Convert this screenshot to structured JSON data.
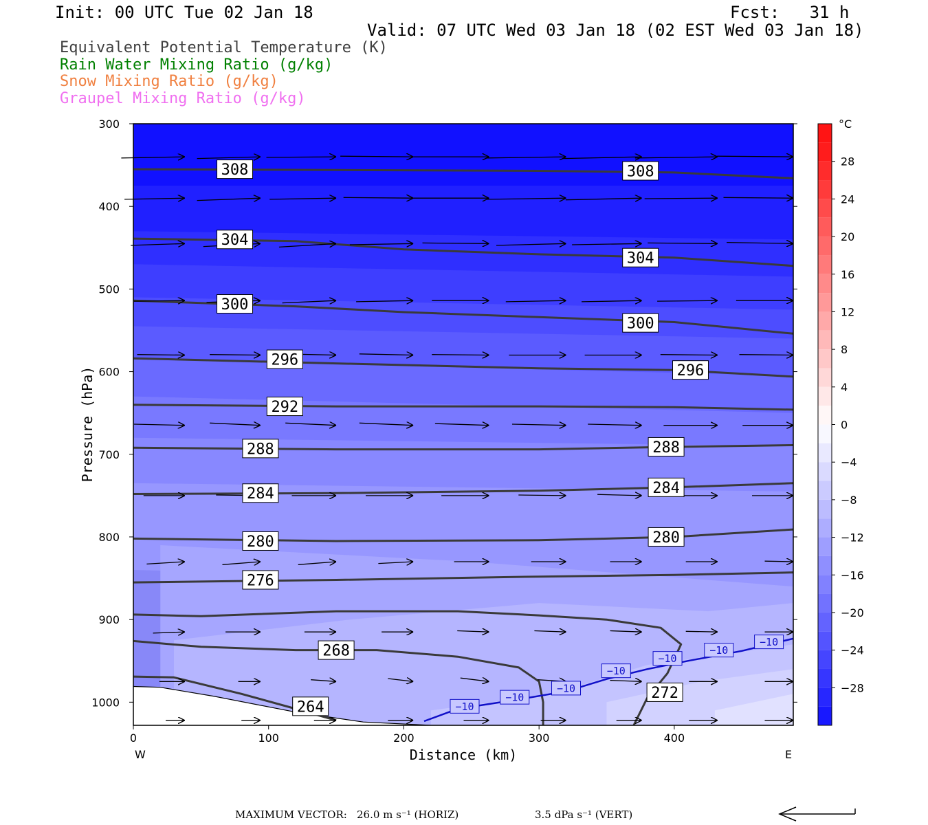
{
  "header": {
    "init": "Init: 00 UTC Tue 02 Jan 18",
    "fcst": "Fcst:   31 h",
    "valid": "Valid: 07 UTC Wed 03 Jan 18 (02 EST Wed 03 Jan 18)"
  },
  "legend": [
    {
      "label": "Equivalent Potential Temperature (K)",
      "color": "#404040"
    },
    {
      "label": "Rain Water Mixing Ratio (g/kg)",
      "color": "#008000"
    },
    {
      "label": "Snow Mixing Ratio (g/kg)",
      "color": "#f08040"
    },
    {
      "label": "Graupel Mixing Ratio (g/kg)",
      "color": "#f070f0"
    }
  ],
  "chart_data": {
    "type": "cross-section",
    "xlabel": "Distance (km)",
    "ylabel": "Pressure (hPa)",
    "xlim": [
      0,
      488
    ],
    "ylim": [
      1028,
      300
    ],
    "x_ticks": [
      "0",
      "100",
      "200",
      "300",
      "400"
    ],
    "x_tick_values": [
      0,
      100,
      200,
      300,
      400
    ],
    "y_ticks": [
      "300",
      "400",
      "500",
      "600",
      "700",
      "800",
      "900",
      "1000"
    ],
    "y_tick_values": [
      300,
      400,
      500,
      600,
      700,
      800,
      900,
      1000
    ],
    "end_labels": {
      "left": "W",
      "right": "E"
    },
    "colorbar": {
      "unit": "°C",
      "labels": [
        "28",
        "24",
        "20",
        "16",
        "12",
        "8",
        "4",
        "0",
        "−4",
        "−8",
        "−12",
        "−16",
        "−20",
        "−24",
        "−28"
      ],
      "values": [
        28,
        24,
        20,
        16,
        12,
        8,
        4,
        0,
        -4,
        -8,
        -12,
        -16,
        -20,
        -24,
        -28
      ],
      "range": [
        -32,
        32
      ]
    },
    "temperature_bands": [
      {
        "value": -32,
        "points": [
          [
            0,
            300
          ],
          [
            488,
            300
          ],
          [
            488,
            420
          ],
          [
            0,
            420
          ]
        ]
      },
      {
        "value": -30,
        "points": [
          [
            0,
            375
          ],
          [
            488,
            375
          ],
          [
            488,
            470
          ],
          [
            0,
            465
          ]
        ]
      },
      {
        "value": -28,
        "points": [
          [
            0,
            430
          ],
          [
            488,
            440
          ],
          [
            488,
            510
          ],
          [
            0,
            500
          ]
        ]
      },
      {
        "value": -26,
        "points": [
          [
            0,
            470
          ],
          [
            488,
            485
          ],
          [
            488,
            550
          ],
          [
            0,
            540
          ]
        ]
      },
      {
        "value": -24,
        "points": [
          [
            0,
            510
          ],
          [
            488,
            525
          ],
          [
            488,
            590
          ],
          [
            0,
            580
          ]
        ]
      },
      {
        "value": -22,
        "points": [
          [
            0,
            545
          ],
          [
            488,
            560
          ],
          [
            488,
            635
          ],
          [
            0,
            620
          ]
        ]
      },
      {
        "value": -20,
        "points": [
          [
            0,
            585
          ],
          [
            488,
            605
          ],
          [
            488,
            680
          ],
          [
            0,
            660
          ]
        ]
      },
      {
        "value": -18,
        "points": [
          [
            0,
            630
          ],
          [
            488,
            650
          ],
          [
            488,
            725
          ],
          [
            0,
            710
          ]
        ]
      },
      {
        "value": -16,
        "points": [
          [
            0,
            680
          ],
          [
            488,
            690
          ],
          [
            488,
            790
          ],
          [
            0,
            770
          ]
        ]
      },
      {
        "value": -14,
        "points": [
          [
            0,
            735
          ],
          [
            488,
            745
          ],
          [
            488,
            860
          ],
          [
            0,
            840
          ]
        ]
      },
      {
        "value": -12,
        "points": [
          [
            20,
            810
          ],
          [
            250,
            830
          ],
          [
            488,
            860
          ],
          [
            488,
            1028
          ],
          [
            20,
            1028
          ]
        ]
      },
      {
        "value": -10,
        "points": [
          [
            30,
            925
          ],
          [
            160,
            900
          ],
          [
            300,
            880
          ],
          [
            425,
            890
          ],
          [
            488,
            880
          ],
          [
            488,
            1028
          ],
          [
            30,
            1028
          ]
        ]
      },
      {
        "value": -8,
        "points": [
          [
            220,
            1010
          ],
          [
            310,
            990
          ],
          [
            380,
            955
          ],
          [
            488,
            930
          ],
          [
            488,
            1028
          ],
          [
            220,
            1028
          ]
        ]
      },
      {
        "value": -6,
        "points": [
          [
            350,
            1000
          ],
          [
            420,
            975
          ],
          [
            488,
            960
          ],
          [
            488,
            1028
          ],
          [
            350,
            1028
          ]
        ]
      },
      {
        "value": -4,
        "points": [
          [
            430,
            1010
          ],
          [
            488,
            990
          ],
          [
            488,
            1028
          ],
          [
            430,
            1028
          ]
        ]
      }
    ],
    "theta_e": [
      {
        "value": 308,
        "label": "308",
        "points": [
          [
            0,
            355
          ],
          [
            150,
            356
          ],
          [
            300,
            357
          ],
          [
            400,
            359
          ],
          [
            488,
            366
          ]
        ],
        "label_at": [
          [
            75,
            355
          ],
          [
            375,
            357
          ]
        ]
      },
      {
        "value": 304,
        "label": "304",
        "points": [
          [
            0,
            439
          ],
          [
            120,
            442
          ],
          [
            200,
            452
          ],
          [
            300,
            458
          ],
          [
            400,
            462
          ],
          [
            488,
            472
          ]
        ],
        "label_at": [
          [
            75,
            440
          ],
          [
            375,
            462
          ]
        ]
      },
      {
        "value": 300,
        "label": "300",
        "points": [
          [
            0,
            514
          ],
          [
            120,
            521
          ],
          [
            200,
            528
          ],
          [
            300,
            534
          ],
          [
            400,
            540
          ],
          [
            488,
            554
          ]
        ],
        "label_at": [
          [
            75,
            518
          ],
          [
            375,
            541
          ]
        ]
      },
      {
        "value": 296,
        "label": "296",
        "points": [
          [
            0,
            584
          ],
          [
            150,
            590
          ],
          [
            300,
            596
          ],
          [
            400,
            598
          ],
          [
            488,
            606
          ]
        ],
        "label_at": [
          [
            112,
            585
          ],
          [
            412,
            598
          ]
        ]
      },
      {
        "value": 292,
        "label": "292",
        "points": [
          [
            0,
            640
          ],
          [
            150,
            642
          ],
          [
            300,
            642
          ],
          [
            400,
            643
          ],
          [
            488,
            646
          ]
        ],
        "label_at": [
          [
            112,
            642
          ]
        ]
      },
      {
        "value": 288,
        "label": "288",
        "points": [
          [
            0,
            692
          ],
          [
            150,
            694
          ],
          [
            300,
            694
          ],
          [
            400,
            691
          ],
          [
            488,
            689
          ]
        ],
        "label_at": [
          [
            94,
            693
          ],
          [
            394,
            691
          ]
        ]
      },
      {
        "value": 284,
        "label": "284",
        "points": [
          [
            0,
            748
          ],
          [
            150,
            747
          ],
          [
            300,
            744
          ],
          [
            400,
            740
          ],
          [
            488,
            735
          ]
        ],
        "label_at": [
          [
            94,
            747
          ],
          [
            394,
            740
          ]
        ]
      },
      {
        "value": 280,
        "label": "280",
        "points": [
          [
            0,
            802
          ],
          [
            150,
            805
          ],
          [
            300,
            804
          ],
          [
            400,
            800
          ],
          [
            488,
            791
          ]
        ],
        "label_at": [
          [
            94,
            805
          ],
          [
            394,
            800
          ]
        ]
      },
      {
        "value": 276,
        "label": "276",
        "points": [
          [
            0,
            855
          ],
          [
            150,
            852
          ],
          [
            300,
            848
          ],
          [
            400,
            846
          ],
          [
            488,
            843
          ]
        ],
        "label_at": [
          [
            94,
            852
          ]
        ]
      },
      {
        "value": 272,
        "label": "272",
        "points": [
          [
            0,
            894
          ],
          [
            50,
            896
          ],
          [
            150,
            890
          ],
          [
            240,
            890
          ],
          [
            300,
            895
          ],
          [
            350,
            900
          ],
          [
            390,
            910
          ],
          [
            405,
            930
          ],
          [
            395,
            965
          ],
          [
            380,
            995
          ],
          [
            370,
            1028
          ]
        ],
        "label_at": [
          [
            393,
            988
          ]
        ]
      },
      {
        "value": 268,
        "label": "268",
        "points": [
          [
            0,
            926
          ],
          [
            50,
            933
          ],
          [
            120,
            937
          ],
          [
            180,
            937
          ],
          [
            240,
            945
          ],
          [
            285,
            958
          ],
          [
            300,
            975
          ],
          [
            303,
            1000
          ],
          [
            303,
            1028
          ]
        ],
        "label_at": [
          [
            150,
            937
          ]
        ]
      },
      {
        "value": 264,
        "label": "264",
        "points": [
          [
            0,
            969
          ],
          [
            30,
            970
          ],
          [
            80,
            990
          ],
          [
            120,
            1008
          ],
          [
            150,
            1022
          ]
        ],
        "label_at": [
          [
            131,
            1005
          ]
        ]
      }
    ],
    "isotherm_minus10": {
      "label": "−10",
      "points": [
        [
          215,
          1023
        ],
        [
          240,
          1008
        ],
        [
          280,
          998
        ],
        [
          320,
          987
        ],
        [
          350,
          972
        ],
        [
          380,
          960
        ],
        [
          410,
          950
        ],
        [
          450,
          938
        ],
        [
          488,
          923
        ]
      ],
      "label_at": [
        [
          245,
          1005
        ],
        [
          282,
          994
        ],
        [
          320,
          983
        ],
        [
          357,
          962
        ],
        [
          395,
          947
        ],
        [
          433,
          937
        ],
        [
          470,
          927
        ]
      ]
    },
    "wind_arrows": {
      "pressure_levels": [
        340,
        390,
        445,
        514,
        580,
        665,
        750,
        830,
        915,
        975,
        1022
      ],
      "x_columns": [
        38,
        94,
        150,
        207,
        263,
        320,
        376,
        432,
        488
      ],
      "u_speed_ms": [
        [
          20,
          20,
          22,
          23,
          24,
          25,
          25,
          26,
          24
        ],
        [
          19,
          20,
          21,
          22,
          24,
          25,
          24,
          23,
          22
        ],
        [
          17,
          18,
          18,
          20,
          21,
          22,
          22,
          22,
          21
        ],
        [
          16,
          17,
          17,
          18,
          18,
          19,
          19,
          19,
          18
        ],
        [
          15,
          16,
          17,
          17,
          18,
          18,
          18,
          18,
          17
        ],
        [
          16,
          16,
          16,
          17,
          17,
          17,
          17,
          17,
          16
        ],
        [
          13,
          14,
          14,
          15,
          15,
          15,
          14,
          14,
          13
        ],
        [
          12,
          12,
          12,
          11,
          11,
          11,
          10,
          10,
          9
        ],
        [
          10,
          11,
          10,
          10,
          10,
          10,
          10,
          10,
          9
        ],
        [
          8,
          7,
          8,
          8,
          9,
          9,
          10,
          9,
          9
        ],
        [
          6,
          6,
          7,
          8,
          8,
          8,
          8,
          9,
          9
        ]
      ],
      "w_dpa_s": [
        [
          0.2,
          0.3,
          0.1,
          -0.1,
          0.0,
          0.2,
          0.3,
          0.2,
          -0.1
        ],
        [
          0.2,
          0.4,
          0.2,
          -0.1,
          0.0,
          0.2,
          0.3,
          0.1,
          -0.1
        ],
        [
          0.3,
          0.5,
          0.6,
          0.2,
          -0.1,
          0.3,
          0.2,
          -0.1,
          -0.2
        ],
        [
          0.1,
          0.3,
          0.4,
          0.2,
          0.0,
          0.2,
          0.2,
          0.1,
          0.0
        ],
        [
          -0.1,
          -0.1,
          -0.2,
          -0.2,
          -0.1,
          0.0,
          0.0,
          -0.1,
          -0.1
        ],
        [
          -0.2,
          -0.4,
          -0.4,
          -0.4,
          -0.3,
          -0.2,
          -0.2,
          0.0,
          0.0
        ],
        [
          0.0,
          -0.1,
          0.0,
          0.0,
          0.0,
          -0.1,
          -0.2,
          0.0,
          0.0
        ],
        [
          0.4,
          0.5,
          0.5,
          0.3,
          0.0,
          0.0,
          0.0,
          0.0,
          -0.1
        ],
        [
          0.2,
          0.0,
          0.0,
          0.0,
          -0.2,
          -0.2,
          -0.2,
          -0.1,
          0.0
        ],
        [
          0.0,
          0.0,
          -0.3,
          -0.5,
          -0.6,
          -0.3,
          -0.2,
          0.0,
          0.0
        ],
        [
          0.0,
          0.0,
          0.0,
          0.0,
          0.0,
          0.0,
          0.0,
          0.0,
          0.0
        ]
      ]
    },
    "terrain": {
      "fill": "#ffffff",
      "points": [
        [
          0,
          981
        ],
        [
          20,
          982
        ],
        [
          60,
          993
        ],
        [
          120,
          1012
        ],
        [
          170,
          1024
        ],
        [
          220,
          1028
        ],
        [
          488,
          1028
        ]
      ]
    }
  },
  "footer": {
    "vector_label": "MAXIMUM VECTOR:",
    "horiz": "26.0 m s⁻¹ (HORIZ)",
    "vert": "3.5 dPa s⁻¹ (VERT)"
  }
}
